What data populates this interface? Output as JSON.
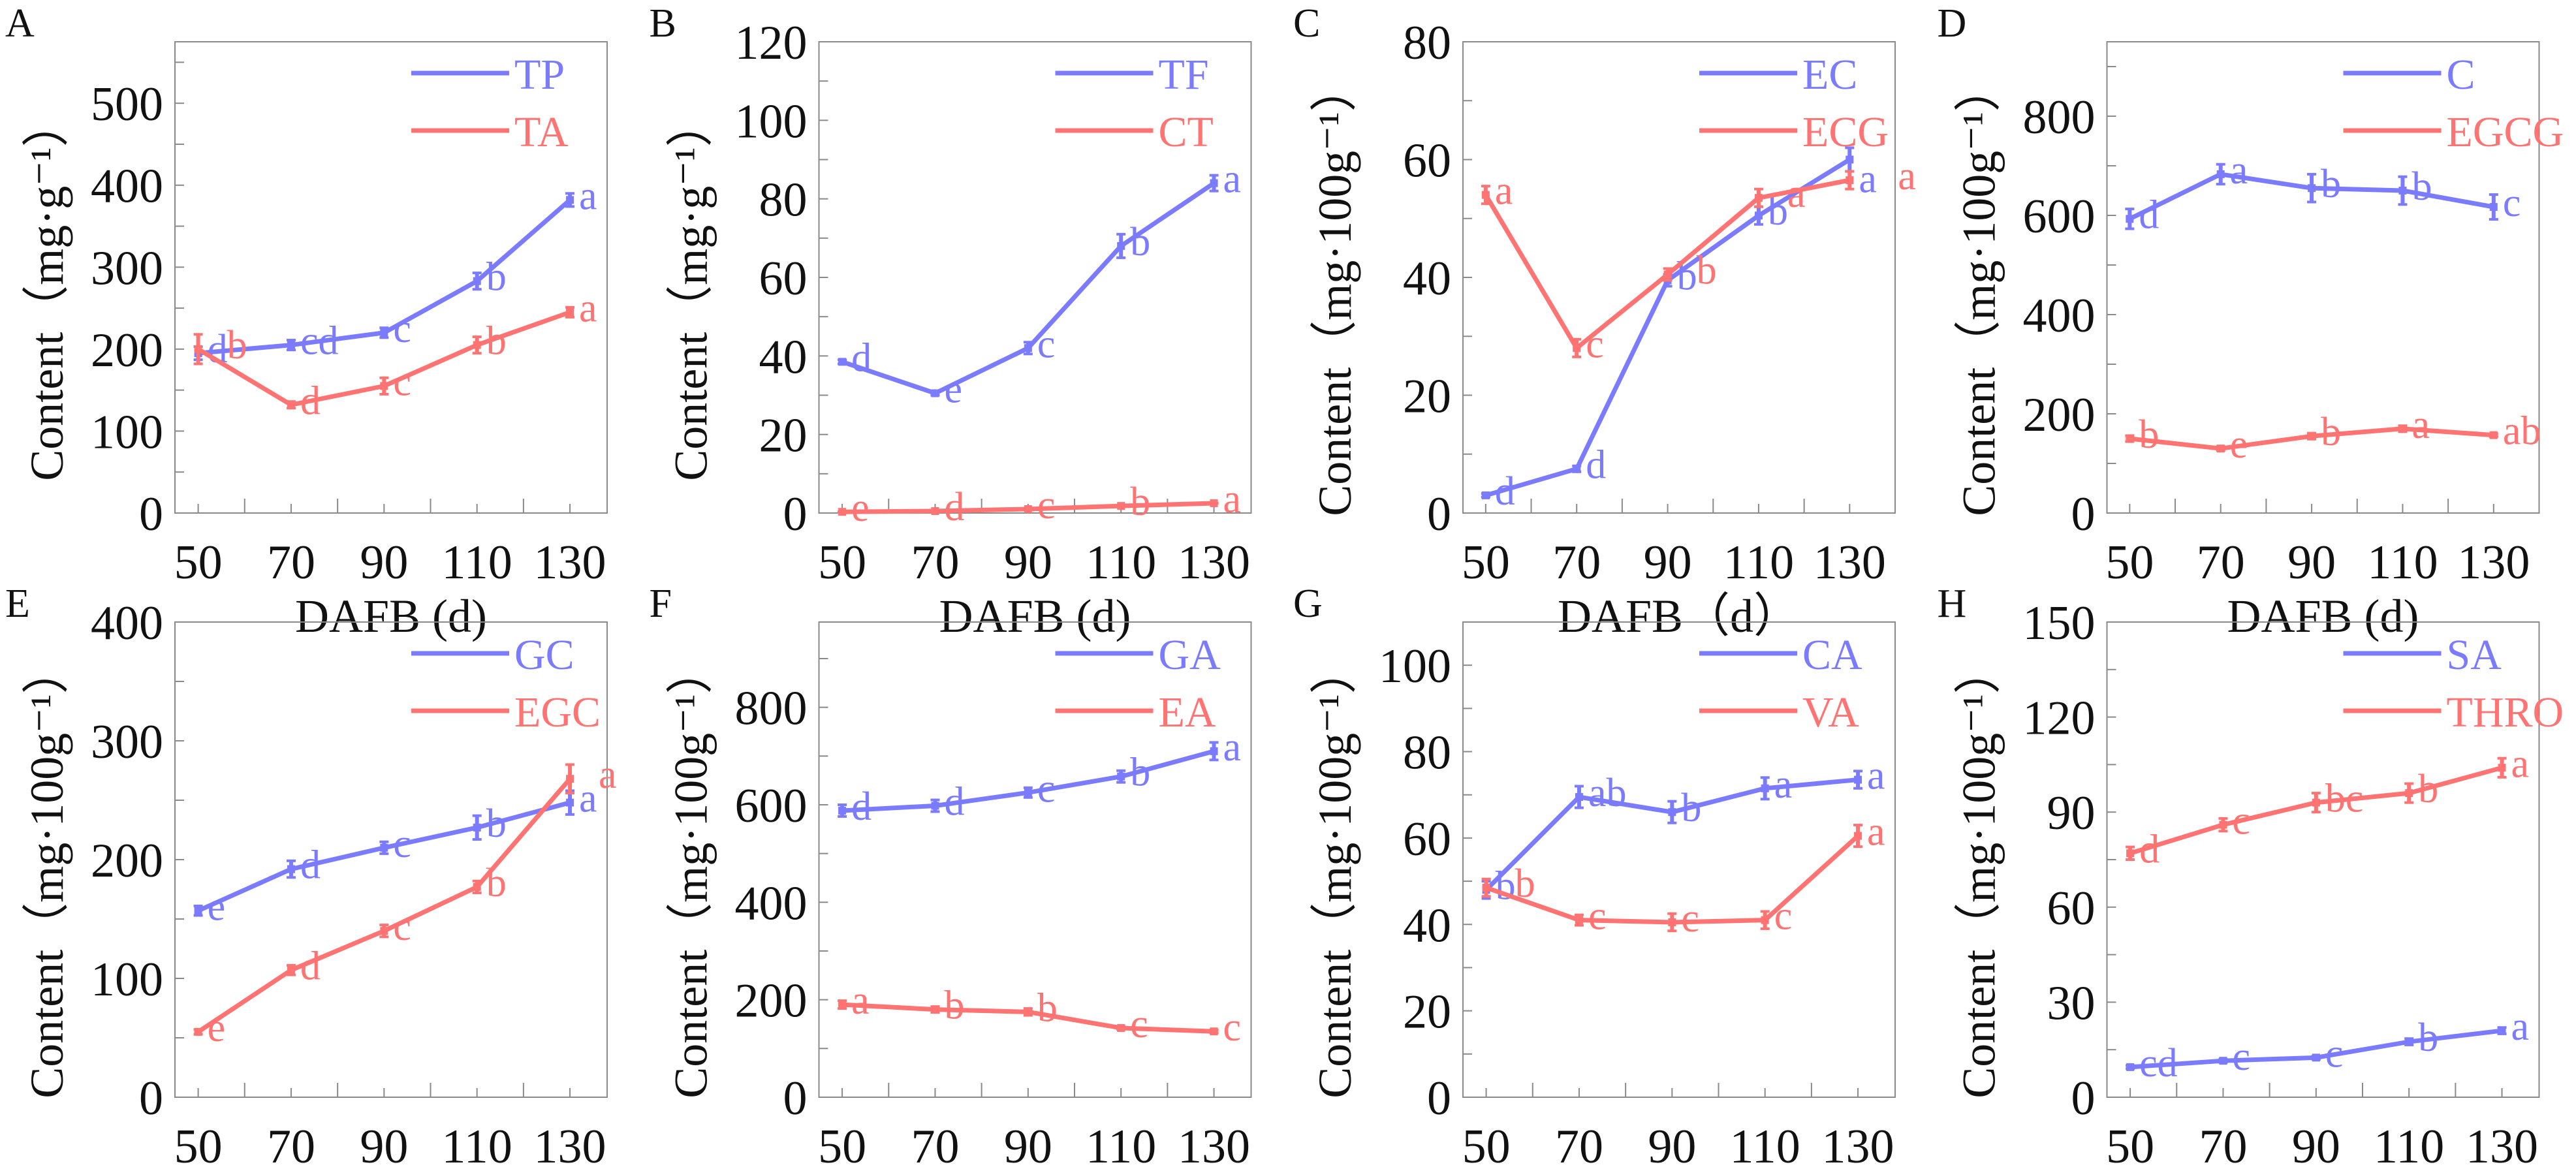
{
  "colors": {
    "series1": "#7b7bff",
    "series2": "#ff7373",
    "frame": "#8a8a8a",
    "text": "#111111"
  },
  "chart_data": [
    {
      "type": "line",
      "panel": "A",
      "title": "",
      "xlabel": "DAFB (d)",
      "ylabel": "Content（mg·g⁻¹）",
      "x": [
        50,
        70,
        90,
        110,
        130
      ],
      "xticks": [
        "50",
        "70",
        "90",
        "110",
        "130"
      ],
      "xlim": [
        45,
        138
      ],
      "ylim": [
        0,
        575
      ],
      "yticks": [
        "0",
        "100",
        "200",
        "300",
        "400",
        "500"
      ],
      "ytick_values": [
        0,
        100,
        200,
        300,
        400,
        500
      ],
      "yminor": 50,
      "legend_position": "top-right",
      "grid": false,
      "series": [
        {
          "name": "TP",
          "values": [
            195,
            205,
            220,
            283,
            382
          ],
          "err": [
            8,
            6,
            6,
            10,
            8
          ],
          "letters": [
            "d",
            "cd",
            "c",
            "b",
            "a"
          ]
        },
        {
          "name": "TA",
          "values": [
            200,
            132,
            155,
            205,
            245
          ],
          "err": [
            18,
            4,
            10,
            10,
            6
          ],
          "letters": [
            "b",
            "d",
            "c",
            "b",
            "a"
          ]
        }
      ]
    },
    {
      "type": "line",
      "panel": "B",
      "title": "",
      "xlabel": "DAFB (d)",
      "ylabel": "Content（mg·g⁻¹）",
      "x": [
        50,
        70,
        90,
        110,
        130
      ],
      "xticks": [
        "50",
        "70",
        "90",
        "110",
        "130"
      ],
      "xlim": [
        45,
        138
      ],
      "ylim": [
        0,
        120
      ],
      "yticks": [
        "0",
        "20",
        "40",
        "60",
        "80",
        "100",
        "120"
      ],
      "ytick_values": [
        0,
        20,
        40,
        60,
        80,
        100,
        120
      ],
      "yminor": 10,
      "legend_position": "top-right",
      "grid": false,
      "series": [
        {
          "name": "TF",
          "values": [
            38.5,
            30.5,
            42,
            68,
            84
          ],
          "err": [
            0.5,
            0.5,
            1.5,
            3,
            2
          ],
          "letters": [
            "d",
            "e",
            "c",
            "b",
            "a"
          ]
        },
        {
          "name": "CT",
          "values": [
            0.3,
            0.5,
            1.0,
            1.8,
            2.5
          ],
          "err": [
            0,
            0,
            0,
            0,
            0
          ],
          "letters": [
            "e",
            "d",
            "c",
            "b",
            "a"
          ]
        }
      ]
    },
    {
      "type": "line",
      "panel": "C",
      "title": "",
      "xlabel": "DAFB（d）",
      "ylabel": "Content（mg·100g⁻¹）",
      "x": [
        50,
        70,
        90,
        110,
        130
      ],
      "xticks": [
        "50",
        "70",
        "90",
        "110",
        "130"
      ],
      "xlim": [
        45,
        140
      ],
      "ylim": [
        0,
        80
      ],
      "yticks": [
        "0",
        "20",
        "40",
        "60",
        "80"
      ],
      "ytick_values": [
        0,
        20,
        40,
        60,
        80
      ],
      "yminor": 10,
      "legend_position": "top-right",
      "grid": false,
      "series": [
        {
          "name": "EC",
          "values": [
            3,
            7.5,
            39.5,
            50.5,
            60
          ],
          "err": [
            0.3,
            0.5,
            1,
            1.5,
            2
          ],
          "letters": [
            "d",
            "d",
            "b",
            "b",
            "a"
          ]
        },
        {
          "name": "ECG",
          "values": [
            54,
            28,
            40.5,
            53.5,
            56.5
          ],
          "err": [
            1.5,
            1.5,
            1,
            1.5,
            1.5
          ],
          "letters": [
            "a",
            "c",
            "b",
            "a",
            "a"
          ]
        }
      ]
    },
    {
      "type": "line",
      "panel": "D",
      "title": "",
      "xlabel": "DAFB (d)",
      "ylabel": "Content（mg·100g⁻¹）",
      "x": [
        50,
        70,
        90,
        110,
        130
      ],
      "xticks": [
        "50",
        "70",
        "90",
        "110",
        "130"
      ],
      "xlim": [
        45,
        140
      ],
      "ylim": [
        0,
        950
      ],
      "yticks": [
        "0",
        "200",
        "400",
        "600",
        "800"
      ],
      "ytick_values": [
        0,
        200,
        400,
        600,
        800
      ],
      "yminor": 100,
      "legend_position": "top-right",
      "grid": false,
      "series": [
        {
          "name": "C",
          "values": [
            593,
            683,
            655,
            650,
            617
          ],
          "err": [
            20,
            20,
            28,
            28,
            25
          ],
          "letters": [
            "d",
            "a",
            "b",
            "b",
            "c"
          ]
        },
        {
          "name": "EGCG",
          "values": [
            150,
            130,
            155,
            170,
            157
          ],
          "err": [
            6,
            4,
            6,
            6,
            3
          ],
          "letters": [
            "b",
            "e",
            "b",
            "a",
            "ab"
          ]
        }
      ]
    },
    {
      "type": "line",
      "panel": "E",
      "title": "",
      "xlabel": "DAFB (d)",
      "ylabel": "Content（mg·100g⁻¹）",
      "x": [
        50,
        70,
        90,
        110,
        130
      ],
      "xticks": [
        "50",
        "70",
        "90",
        "110",
        "130"
      ],
      "xlim": [
        45,
        138
      ],
      "ylim": [
        0,
        400
      ],
      "yticks": [
        "0",
        "100",
        "200",
        "300",
        "400"
      ],
      "ytick_values": [
        0,
        100,
        200,
        300,
        400
      ],
      "yminor": 50,
      "legend_position": "top-right",
      "grid": false,
      "series": [
        {
          "name": "GC",
          "values": [
            157,
            192,
            210,
            227,
            248
          ],
          "err": [
            4,
            7,
            5,
            10,
            10
          ],
          "letters": [
            "e",
            "d",
            "c",
            "b",
            "a"
          ]
        },
        {
          "name": "EGC",
          "values": [
            55,
            107,
            140,
            177,
            268
          ],
          "err": [
            2,
            4,
            5,
            5,
            12
          ],
          "letters": [
            "e",
            "d",
            "c",
            "b",
            "a"
          ]
        }
      ]
    },
    {
      "type": "line",
      "panel": "F",
      "title": "",
      "xlabel": "DAFB (d)",
      "ylabel": "Content（mg·100g⁻¹）",
      "x": [
        50,
        70,
        90,
        110,
        130
      ],
      "xticks": [
        "50",
        "70",
        "90",
        "110",
        "130"
      ],
      "xlim": [
        45,
        138
      ],
      "ylim": [
        0,
        975
      ],
      "yticks": [
        "0",
        "200",
        "400",
        "600",
        "800"
      ],
      "ytick_values": [
        0,
        200,
        400,
        600,
        800
      ],
      "yminor": 100,
      "legend_position": "top-right",
      "grid": false,
      "series": [
        {
          "name": "GA",
          "values": [
            588,
            598,
            625,
            658,
            710
          ],
          "err": [
            12,
            12,
            10,
            12,
            18
          ],
          "letters": [
            "d",
            "d",
            "c",
            "b",
            "a"
          ]
        },
        {
          "name": "EA",
          "values": [
            190,
            180,
            175,
            142,
            135
          ],
          "err": [
            8,
            6,
            7,
            3,
            3
          ],
          "letters": [
            "a",
            "b",
            "b",
            "c",
            "c"
          ]
        }
      ]
    },
    {
      "type": "line",
      "panel": "G",
      "title": "",
      "xlabel": "DAFB (d)",
      "ylabel": "Content（mg·100g⁻¹）",
      "x": [
        50,
        70,
        90,
        110,
        130
      ],
      "xticks": [
        "50",
        "70",
        "90",
        "110",
        "130"
      ],
      "xlim": [
        45,
        138
      ],
      "ylim": [
        0,
        110
      ],
      "yticks": [
        "0",
        "20",
        "40",
        "60",
        "80",
        "100"
      ],
      "ytick_values": [
        0,
        20,
        40,
        60,
        80,
        100
      ],
      "yminor": 10,
      "legend_position": "top-right",
      "grid": false,
      "series": [
        {
          "name": "CA",
          "values": [
            48,
            69.5,
            66,
            71.5,
            73.5
          ],
          "err": [
            2,
            2.5,
            2.5,
            2.5,
            2
          ],
          "letters": [
            "b",
            "ab",
            "b",
            "a",
            "a"
          ]
        },
        {
          "name": "VA",
          "values": [
            48.5,
            41,
            40.5,
            41,
            60.5
          ],
          "err": [
            2,
            1.2,
            2,
            2,
            2.5
          ],
          "letters": [
            "b",
            "c",
            "c",
            "c",
            "a"
          ]
        }
      ]
    },
    {
      "type": "line",
      "panel": "H",
      "title": "",
      "xlabel": "DAFB (d)",
      "ylabel": "Content（mg·100g⁻¹）",
      "x": [
        50,
        70,
        90,
        110,
        130
      ],
      "xticks": [
        "50",
        "70",
        "90",
        "110",
        "130"
      ],
      "xlim": [
        45,
        138
      ],
      "ylim": [
        0,
        150
      ],
      "yticks": [
        "0",
        "30",
        "60",
        "90",
        "120",
        "150"
      ],
      "ytick_values": [
        0,
        30,
        60,
        90,
        120,
        150
      ],
      "yminor": 15,
      "legend_position": "top-right",
      "grid": false,
      "series": [
        {
          "name": "SA",
          "values": [
            9.5,
            11.5,
            12.5,
            17.5,
            21
          ],
          "err": [
            0.5,
            0.5,
            0.5,
            1,
            1
          ],
          "letters": [
            "cd",
            "c",
            "c",
            "b",
            "a"
          ]
        },
        {
          "name": "THRO",
          "values": [
            77,
            86,
            93,
            96,
            104
          ],
          "err": [
            2,
            2,
            3,
            3,
            3
          ],
          "letters": [
            "d",
            "c",
            "bc",
            "b",
            "a"
          ]
        }
      ]
    }
  ]
}
